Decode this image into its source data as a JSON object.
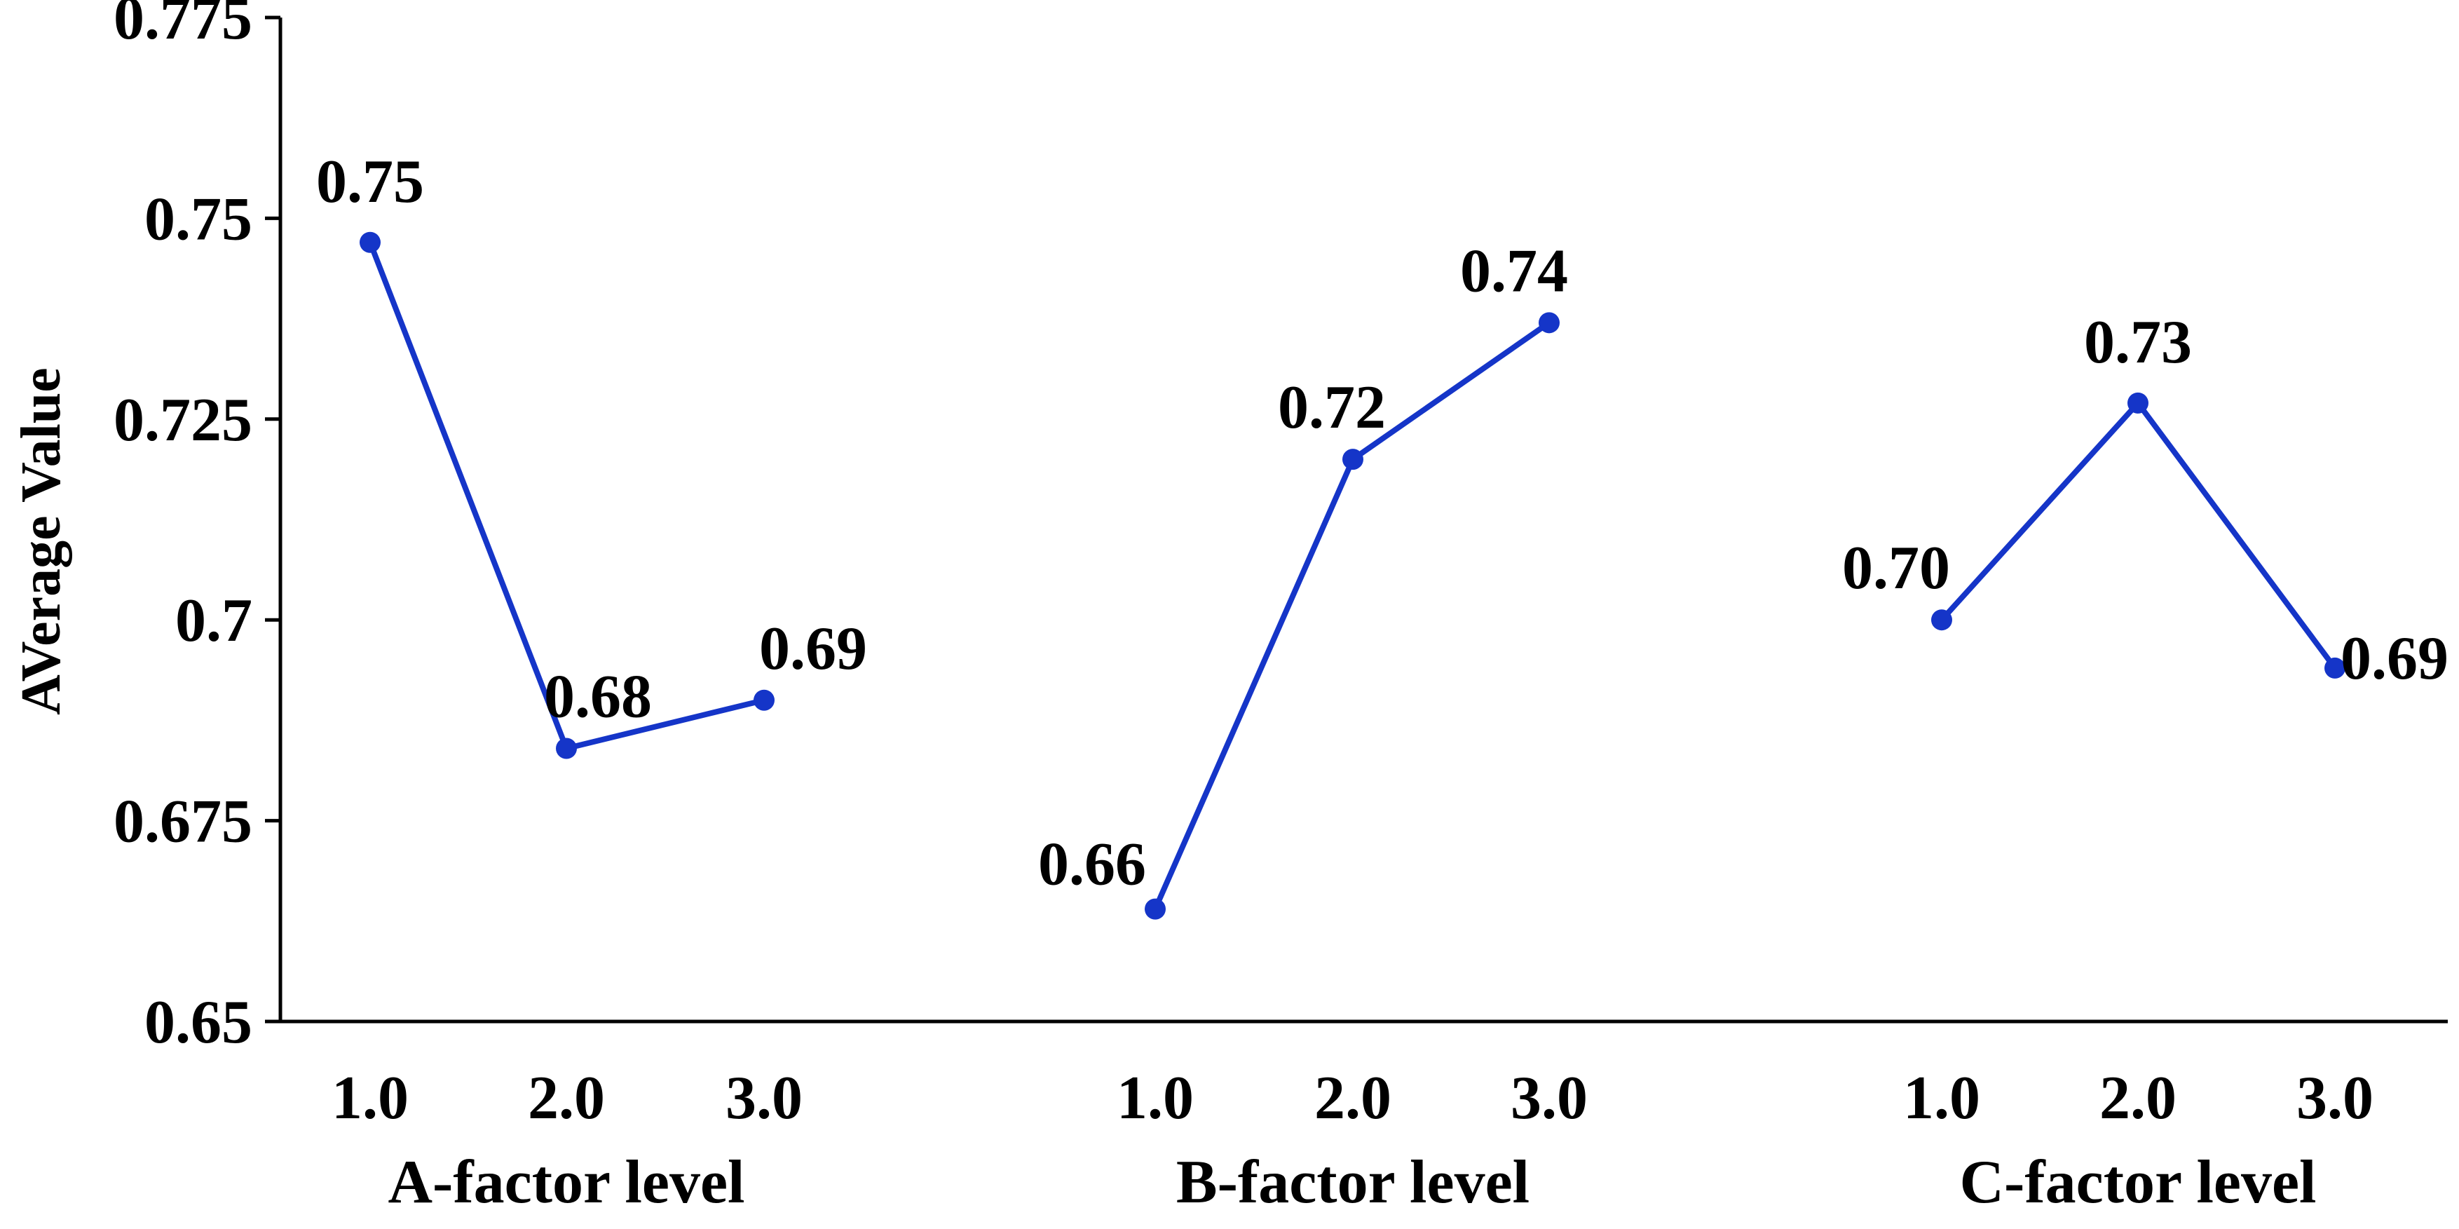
{
  "chart_data": {
    "type": "line",
    "title": "",
    "ylabel": "AVerage Value",
    "ylim": [
      0.65,
      0.775
    ],
    "yticks": [
      0.65,
      0.675,
      0.7,
      0.725,
      0.75,
      0.775
    ],
    "ytick_labels": [
      "0.65",
      "0.675",
      "0.7",
      "0.725",
      "0.75",
      "0.775"
    ],
    "grid": false,
    "colors": {
      "line": "#1535c8",
      "marker": "#1535c8",
      "axis": "#000000"
    },
    "groups": [
      {
        "name": "A-factor level",
        "x": [
          1.0,
          2.0,
          3.0
        ],
        "x_labels": [
          "1.0",
          "2.0",
          "3.0"
        ],
        "values": [
          0.747,
          0.684,
          0.69
        ],
        "data_labels": [
          "0.75",
          "0.68",
          "0.69"
        ]
      },
      {
        "name": "B-factor level",
        "x": [
          1.0,
          2.0,
          3.0
        ],
        "x_labels": [
          "1.0",
          "2.0",
          "3.0"
        ],
        "values": [
          0.664,
          0.72,
          0.737
        ],
        "data_labels": [
          "0.66",
          "0.72",
          "0.74"
        ]
      },
      {
        "name": "C-factor level",
        "x": [
          1.0,
          2.0,
          3.0
        ],
        "x_labels": [
          "1.0",
          "2.0",
          "3.0"
        ],
        "values": [
          0.7,
          0.727,
          0.694
        ],
        "data_labels": [
          "0.70",
          "0.73",
          "0.69"
        ]
      }
    ]
  }
}
